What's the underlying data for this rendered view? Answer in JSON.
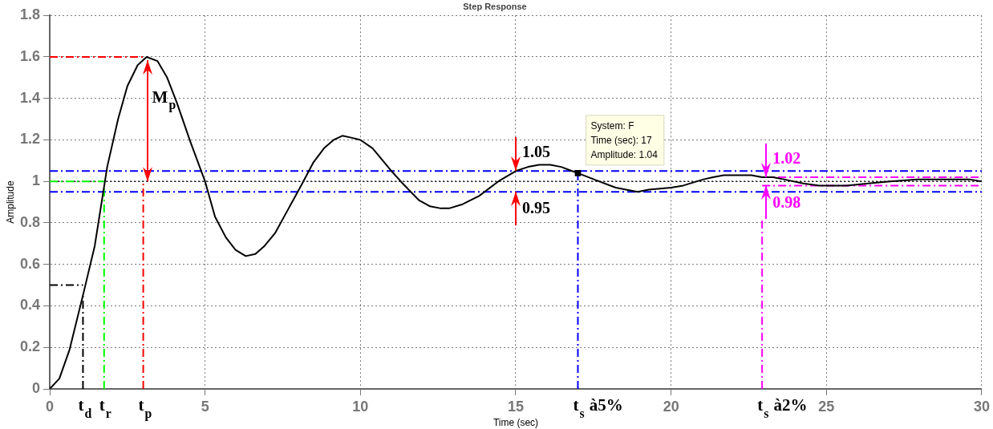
{
  "chart_data": {
    "type": "line",
    "title": "Step Response",
    "xlabel": "Time (sec)",
    "ylabel": "Amplitude",
    "x": [
      0,
      0.31,
      0.64,
      1.1,
      1.45,
      1.85,
      2.2,
      2.5,
      2.83,
      3.12,
      3.47,
      3.78,
      4.09,
      4.53,
      5.0,
      5.32,
      5.67,
      5.98,
      6.31,
      6.62,
      6.92,
      7.25,
      7.69,
      8.13,
      8.48,
      8.83,
      9.14,
      9.42,
      9.73,
      10,
      10.39,
      10.61,
      11,
      11.36,
      11.88,
      12.24,
      12.59,
      12.85,
      13.29,
      13.82,
      14.44,
      15,
      15.4,
      15.76,
      16.11,
      16.46,
      16.81,
      17,
      17.51,
      18.22,
      18.92,
      19.28,
      20,
      20.39,
      21.05,
      21.35,
      21.7,
      22.15,
      22.58,
      22.93,
      23.28,
      23.63,
      24.25,
      24.77,
      25.12,
      25.65,
      26.35,
      27.05,
      27.93,
      28.71,
      29.59,
      30
    ],
    "series": [
      {
        "color": "#000000",
        "values": [
          0,
          0.05,
          0.19,
          0.47,
          0.69,
          1.07,
          1.3,
          1.46,
          1.56,
          1.6,
          1.58,
          1.5,
          1.38,
          1.19,
          1.0,
          0.83,
          0.73,
          0.67,
          0.64,
          0.65,
          0.69,
          0.75,
          0.87,
          0.99,
          1.09,
          1.16,
          1.2,
          1.22,
          1.21,
          1.2,
          1.16,
          1.12,
          1.05,
          0.99,
          0.91,
          0.88,
          0.87,
          0.87,
          0.89,
          0.93,
          1.0,
          1.05,
          1.07,
          1.08,
          1.08,
          1.07,
          1.05,
          1.04,
          1.01,
          0.97,
          0.95,
          0.96,
          0.97,
          0.98,
          1.01,
          1.02,
          1.03,
          1.03,
          1.03,
          1.02,
          1.02,
          1.01,
          0.99,
          0.98,
          0.98,
          0.98,
          0.99,
          1.0,
          1.01,
          1.01,
          1.01,
          1.0
        ]
      },
      {
        "color": "#ff0000",
        "line_style": "dashed",
        "x": [
          0,
          3.01
        ],
        "values": [
          1.6,
          1.6
        ]
      },
      {
        "color": "#000000",
        "line_style": "dashed",
        "x": [
          0,
          1.07
        ],
        "values": [
          0.5,
          0.5
        ]
      },
      {
        "color": "#00ff00",
        "line_style": "dashed",
        "x": [
          0,
          1.75
        ],
        "values": [
          1,
          1
        ]
      },
      {
        "color": "#ff00ff",
        "line_style": "dashed",
        "x": [
          22.93,
          30
        ],
        "values": [
          1.02,
          1.02
        ]
      },
      {
        "color": "#ff00ff",
        "line_style": "dashed",
        "x": [
          22.93,
          30
        ],
        "values": [
          0.98,
          0.98
        ]
      },
      {
        "type": "scatter",
        "color": "#000000",
        "marker": "square",
        "x": [
          17
        ],
        "values": [
          1.04
        ]
      }
    ],
    "xlim": [
      0,
      30
    ],
    "xticks": [
      0,
      5,
      10,
      15,
      20,
      25,
      30
    ],
    "ylim": [
      0,
      1.8
    ],
    "yticks": [
      0,
      0.2,
      0.4,
      0.6,
      0.8,
      1,
      1.2,
      1.4,
      1.6,
      1.8
    ],
    "grid": true,
    "marker": "none",
    "line_style": "solid",
    "ref_lines": [
      {
        "axis": "y",
        "value": 1,
        "color": "#000000",
        "line_style": "dotted"
      },
      {
        "axis": "y",
        "value": 1.05,
        "color": "#0000ff",
        "line_style": "dashed"
      },
      {
        "axis": "y",
        "value": 0.95,
        "color": "#0000ff",
        "line_style": "dashed"
      },
      {
        "axis": "x",
        "value": 1.07,
        "label": "t$_{d}$",
        "color": "#000000",
        "line_style": "dashed"
      },
      {
        "axis": "x",
        "value": 1.75,
        "label": "t$_{r}$",
        "color": "#00ff00",
        "line_style": "dashed"
      },
      {
        "axis": "x",
        "value": 3.01,
        "label": "t$_{p}$",
        "color": "#ff0000",
        "line_style": "dashed"
      },
      {
        "axis": "x",
        "value": 17,
        "label": "t$_{s}$ à5%",
        "color": "#0000ff",
        "line_style": "dashed"
      },
      {
        "axis": "x",
        "value": 22.93,
        "label": "t$_{s}$ à2%",
        "color": "#ff00ff",
        "line_style": "dashed"
      }
    ],
    "annotations": [
      {
        "text": "M$_{p}$",
        "x": 3.01,
        "y": 1.6
      },
      {
        "text": "1.05",
        "x": 15,
        "y": 1.05
      },
      {
        "text": "0.95",
        "x": 15,
        "y": 0.95
      },
      {
        "text": "1.02",
        "x": 22.93,
        "y": 1.02
      },
      {
        "text": "0.98",
        "x": 22.93,
        "y": 0.98
      },
      {
        "text": "System: F\nTime (sec): 17\nAmplitude: 1.04",
        "x": 17,
        "y": 1.04
      }
    ]
  }
}
